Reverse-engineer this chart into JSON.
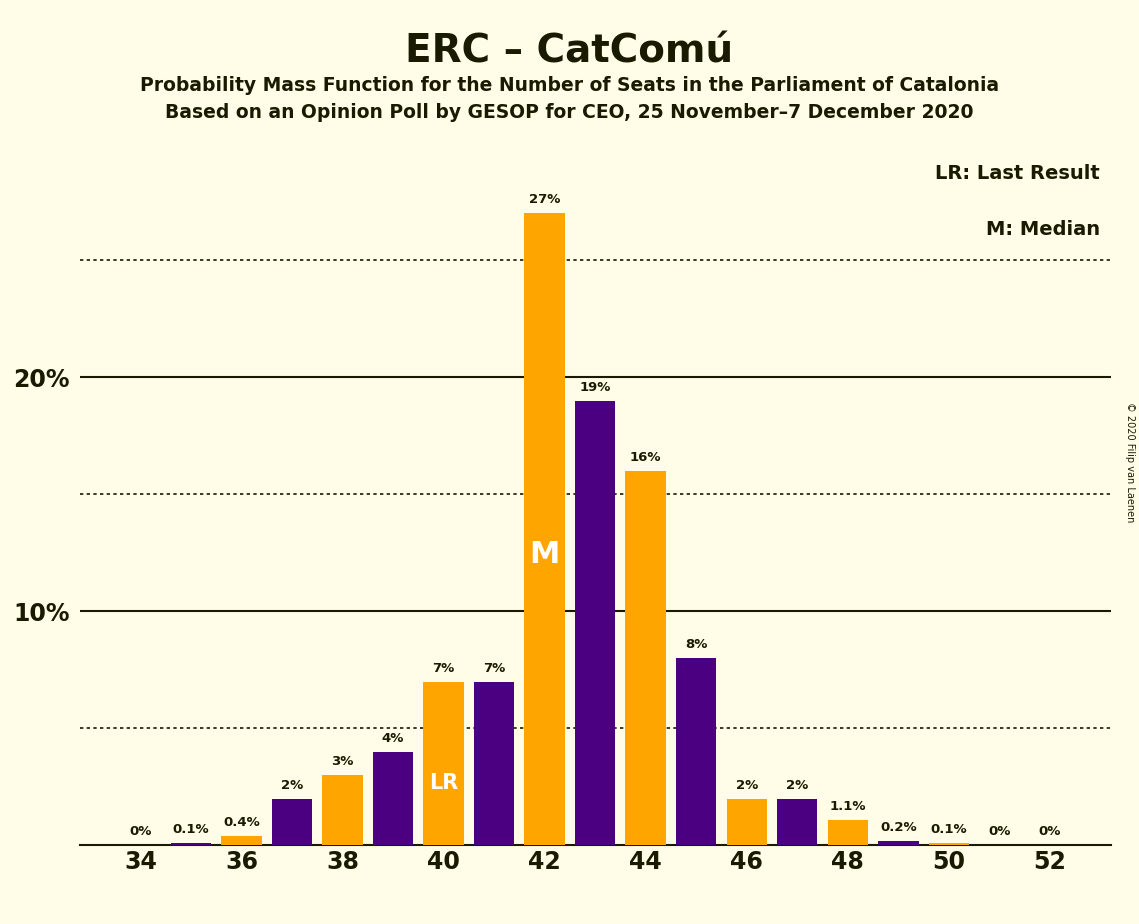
{
  "title": "ERC – CatComú",
  "subtitle1": "Probability Mass Function for the Number of Seats in the Parliament of Catalonia",
  "subtitle2": "Based on an Opinion Poll by GESOP for CEO, 25 November–7 December 2020",
  "copyright": "© 2020 Filip van Laenen",
  "legend_lr": "LR: Last Result",
  "legend_m": "M: Median",
  "seats": [
    34,
    35,
    36,
    37,
    38,
    39,
    40,
    41,
    42,
    43,
    44,
    45,
    46,
    47,
    48,
    49,
    50,
    51,
    52
  ],
  "values": [
    0.0,
    0.1,
    0.4,
    2.0,
    3.0,
    4.0,
    7.0,
    7.0,
    27.0,
    19.0,
    16.0,
    8.0,
    2.0,
    2.0,
    1.1,
    0.2,
    0.1,
    0.0,
    0.0
  ],
  "bar_colors": [
    "#FFA500",
    "#4B0082",
    "#FFA500",
    "#4B0082",
    "#FFA500",
    "#4B0082",
    "#FFA500",
    "#4B0082",
    "#FFA500",
    "#4B0082",
    "#FFA500",
    "#4B0082",
    "#FFA500",
    "#4B0082",
    "#FFA500",
    "#4B0082",
    "#FFA500",
    "#4B0082",
    "#FFA500"
  ],
  "labels": [
    "0%",
    "0.1%",
    "0.4%",
    "2%",
    "3%",
    "4%",
    "7%",
    "7%",
    "27%",
    "19%",
    "16%",
    "8%",
    "2%",
    "2%",
    "1.1%",
    "0.2%",
    "0.1%",
    "0%",
    "0%"
  ],
  "orange_color": "#FFA500",
  "purple_color": "#4B0082",
  "background_color": "#FFFDE7",
  "text_color": "#1a1a00",
  "lr_seat": 40,
  "median_seat": 42,
  "ylim": [
    0,
    30
  ],
  "yticks": [
    10,
    20
  ],
  "ytick_labels": [
    "10%",
    "20%"
  ],
  "dotted_lines": [
    5,
    15,
    25
  ],
  "bar_width": 0.8,
  "xlim_left": 32.8,
  "xlim_right": 53.2
}
